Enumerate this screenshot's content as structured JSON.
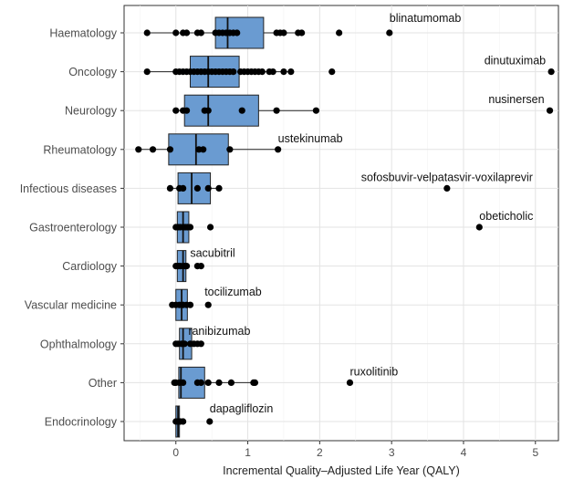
{
  "chart_data": {
    "type": "boxplot",
    "orientation": "horizontal",
    "xlabel": "Incremental Quality–Adjusted Life Year (QALY)",
    "xlim": [
      -0.72,
      5.32
    ],
    "xticks": [
      0,
      1,
      2,
      3,
      4,
      5
    ],
    "grid": true,
    "box_color": "#6a9bd1",
    "categories": [
      {
        "name": "Haematology",
        "box": {
          "whisker_low": -0.4,
          "q1": 0.55,
          "median": 0.72,
          "q3": 1.22,
          "whisker_high": 1.75
        },
        "points": [
          -0.4,
          0.0,
          0.1,
          0.15,
          0.3,
          0.35,
          0.55,
          0.6,
          0.65,
          0.7,
          0.75,
          0.8,
          0.85,
          1.4,
          1.45,
          1.5,
          1.7,
          1.75,
          2.27,
          2.97
        ]
      },
      {
        "name": "Oncology",
        "box": {
          "whisker_low": -0.4,
          "q1": 0.2,
          "median": 0.45,
          "q3": 0.88,
          "whisker_high": 1.6
        },
        "points": [
          -0.4,
          0.0,
          0.05,
          0.1,
          0.15,
          0.2,
          0.25,
          0.3,
          0.35,
          0.4,
          0.45,
          0.5,
          0.55,
          0.6,
          0.65,
          0.7,
          0.75,
          0.8,
          0.9,
          0.95,
          1.0,
          1.05,
          1.1,
          1.15,
          1.2,
          1.3,
          1.35,
          1.5,
          1.6,
          2.17,
          5.22
        ]
      },
      {
        "name": "Neurology",
        "box": {
          "whisker_low": 0.0,
          "q1": 0.12,
          "median": 0.45,
          "q3": 1.15,
          "whisker_high": 1.95
        },
        "points": [
          0.0,
          0.1,
          0.15,
          0.4,
          0.45,
          0.92,
          1.4,
          1.95,
          5.2
        ]
      },
      {
        "name": "Rheumatology",
        "box": {
          "whisker_low": -0.52,
          "q1": -0.1,
          "median": 0.28,
          "q3": 0.73,
          "whisker_high": 1.42
        },
        "points": [
          -0.52,
          -0.32,
          -0.08,
          0.32,
          0.38,
          0.75,
          1.42
        ]
      },
      {
        "name": "Infectious diseases",
        "box": {
          "whisker_low": -0.08,
          "q1": 0.03,
          "median": 0.22,
          "q3": 0.48,
          "whisker_high": 0.6
        },
        "points": [
          -0.08,
          0.05,
          0.1,
          0.3,
          0.45,
          0.6,
          3.77
        ]
      },
      {
        "name": "Gastroenterology",
        "box": {
          "whisker_low": 0.0,
          "q1": 0.02,
          "median": 0.1,
          "q3": 0.18,
          "whisker_high": 0.2
        },
        "points": [
          0.0,
          0.03,
          0.06,
          0.1,
          0.13,
          0.16,
          0.2,
          0.48,
          4.22
        ]
      },
      {
        "name": "Cardiology",
        "box": {
          "whisker_low": 0.0,
          "q1": 0.02,
          "median": 0.1,
          "q3": 0.14,
          "whisker_high": 0.15
        },
        "points": [
          0.0,
          0.03,
          0.06,
          0.1,
          0.13,
          0.15,
          0.3,
          0.35
        ]
      },
      {
        "name": "Vascular medicine",
        "box": {
          "whisker_low": -0.05,
          "q1": 0.0,
          "median": 0.08,
          "q3": 0.16,
          "whisker_high": 0.2
        },
        "points": [
          -0.05,
          0.0,
          0.05,
          0.1,
          0.15,
          0.2,
          0.45
        ]
      },
      {
        "name": "Ophthalmology",
        "box": {
          "whisker_low": 0.0,
          "q1": 0.05,
          "median": 0.1,
          "q3": 0.22,
          "whisker_high": 0.35
        },
        "points": [
          0.0,
          0.03,
          0.08,
          0.12,
          0.2,
          0.25,
          0.3,
          0.35
        ]
      },
      {
        "name": "Other",
        "box": {
          "whisker_low": -0.02,
          "q1": 0.04,
          "median": 0.07,
          "q3": 0.4,
          "whisker_high": 1.1
        },
        "points": [
          -0.02,
          0.0,
          0.05,
          0.1,
          0.3,
          0.35,
          0.45,
          0.6,
          0.77,
          1.08,
          1.1,
          2.42
        ]
      },
      {
        "name": "Endocrinology",
        "box": {
          "whisker_low": 0.0,
          "q1": 0.0,
          "median": 0.03,
          "q3": 0.05,
          "whisker_high": 0.1
        },
        "points": [
          0.0,
          0.03,
          0.06,
          0.1,
          0.47
        ]
      }
    ],
    "annotations": [
      {
        "category": "Haematology",
        "x": 2.97,
        "text": "blinatumomab",
        "anchor": "start",
        "dx": 0,
        "dy": -12
      },
      {
        "category": "Oncology",
        "x": 5.22,
        "text": "dinutuximab",
        "anchor": "end",
        "dx": -6,
        "dy": -8
      },
      {
        "category": "Neurology",
        "x": 5.2,
        "text": "nusinersen",
        "anchor": "end",
        "dx": -6,
        "dy": -8
      },
      {
        "category": "Rheumatology",
        "x": 1.42,
        "text": "ustekinumab",
        "anchor": "start",
        "dx": 0,
        "dy": -8
      },
      {
        "category": "Infectious diseases",
        "x": 3.77,
        "text": "sofosbuvir-velpatasvir-voxilaprevir",
        "anchor": "middle",
        "dx": 0,
        "dy": -8
      },
      {
        "category": "Gastroenterology",
        "x": 4.22,
        "text": "obeticholic",
        "anchor": "start",
        "dx": 0,
        "dy": -8
      },
      {
        "category": "Cardiology",
        "x": 0.35,
        "text": "sacubitril",
        "anchor": "start",
        "dx": -12,
        "dy": -10
      },
      {
        "category": "Vascular medicine",
        "x": 0.45,
        "text": "tocilizumab",
        "anchor": "start",
        "dx": -4,
        "dy": -10
      },
      {
        "category": "Ophthalmology",
        "x": 0.35,
        "text": "ranibizumab",
        "anchor": "start",
        "dx": -14,
        "dy": -10
      },
      {
        "category": "Other",
        "x": 2.42,
        "text": "ruxolitinib",
        "anchor": "start",
        "dx": 0,
        "dy": -8
      },
      {
        "category": "Endocrinology",
        "x": 0.47,
        "text": "dapagliflozin",
        "anchor": "start",
        "dx": 0,
        "dy": -10
      }
    ]
  }
}
